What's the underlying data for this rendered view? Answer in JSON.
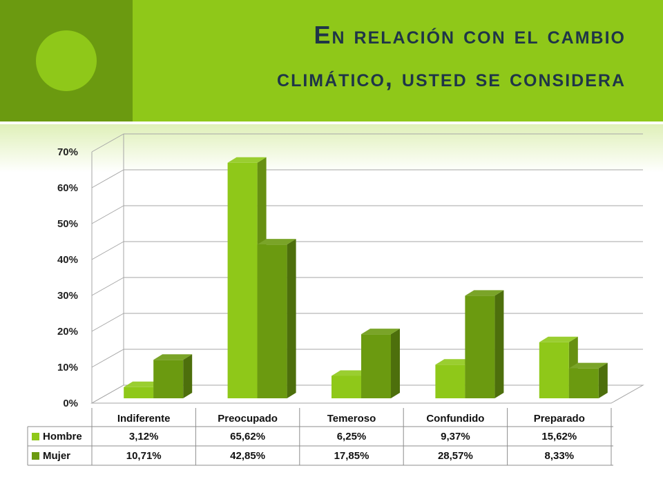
{
  "title": {
    "line1": "En relación con el cambio",
    "line2": "climático, usted se considera"
  },
  "colors": {
    "header_band": "#8fc819",
    "header_side": "#6b9a10",
    "title_text": "#1f3548",
    "hombre": "#8fc819",
    "mujer": "#6b9a10"
  },
  "chart_data": {
    "type": "bar",
    "three_d": true,
    "categories": [
      "Indiferente",
      "Preocupado",
      "Temeroso",
      "Confundido",
      "Preparado"
    ],
    "series": [
      {
        "name": "Hombre",
        "values": [
          3.12,
          65.62,
          6.25,
          9.37,
          15.62
        ],
        "labels": [
          "3,12%",
          "65,62%",
          "6,25%",
          "9,37%",
          "15,62%"
        ]
      },
      {
        "name": "Mujer",
        "values": [
          10.71,
          42.85,
          17.85,
          28.57,
          8.33
        ],
        "labels": [
          "10,71%",
          "42,85%",
          "17,85%",
          "28,57%",
          "8,33%"
        ]
      }
    ],
    "y_ticks": [
      "0%",
      "10%",
      "20%",
      "30%",
      "40%",
      "50%",
      "60%",
      "70%"
    ],
    "ylim": [
      0,
      70
    ],
    "grid": true,
    "legend": "data-table-below"
  }
}
